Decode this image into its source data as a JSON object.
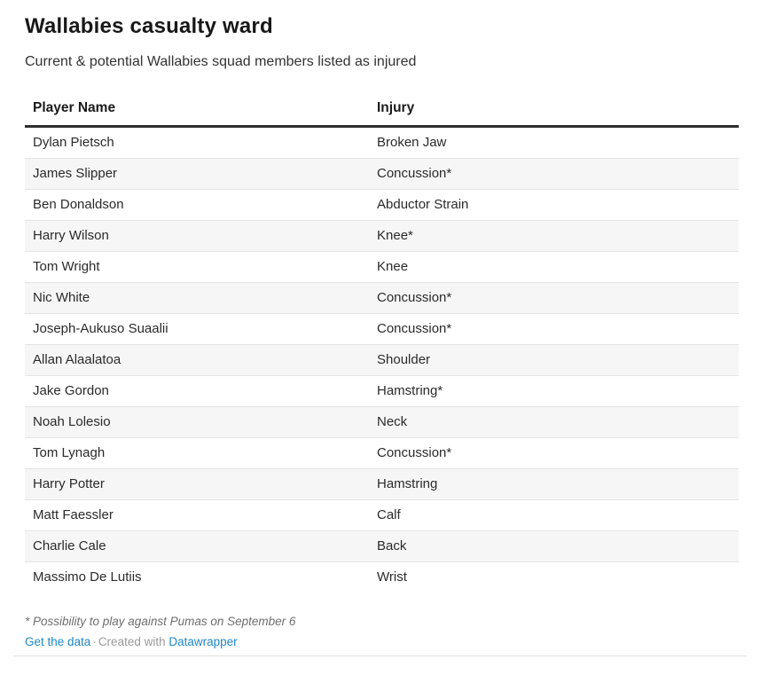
{
  "chart_data": {
    "type": "table",
    "title": "Wallabies casualty ward",
    "subtitle": "Current & potential Wallabies squad members listed as injured",
    "columns": [
      "Player Name",
      "Injury"
    ],
    "rows": [
      [
        "Dylan Pietsch",
        "Broken Jaw"
      ],
      [
        "James Slipper",
        "Concussion*"
      ],
      [
        "Ben Donaldson",
        "Abductor Strain"
      ],
      [
        "Harry Wilson",
        "Knee*"
      ],
      [
        "Tom Wright",
        "Knee"
      ],
      [
        "Nic White",
        "Concussion*"
      ],
      [
        "Joseph-Aukuso Suaalii",
        "Concussion*"
      ],
      [
        "Allan Alaalatoa",
        "Shoulder"
      ],
      [
        "Jake Gordon",
        "Hamstring*"
      ],
      [
        "Noah Lolesio",
        "Neck"
      ],
      [
        "Tom Lynagh",
        "Concussion*"
      ],
      [
        "Harry Potter",
        "Hamstring"
      ],
      [
        "Matt Faessler",
        "Calf"
      ],
      [
        "Charlie Cale",
        "Back"
      ],
      [
        "Massimo De Lutiis",
        "Wrist"
      ]
    ],
    "footnote": "* Possibility to play against Pumas on September 6",
    "layout_hints": {
      "striped_rows": true,
      "stripe_color": "#f6f6f6",
      "header_rule_color": "#2e2e2e"
    }
  },
  "footer": {
    "get_data_label": "Get the data",
    "separator": "·",
    "created_with_label": "Created with",
    "datawrapper_label": "Datawrapper"
  },
  "colors": {
    "link_blue": "#1f87c5",
    "row_stripe": "#f6f6f6",
    "footnote_gray": "#6e6e6e"
  }
}
